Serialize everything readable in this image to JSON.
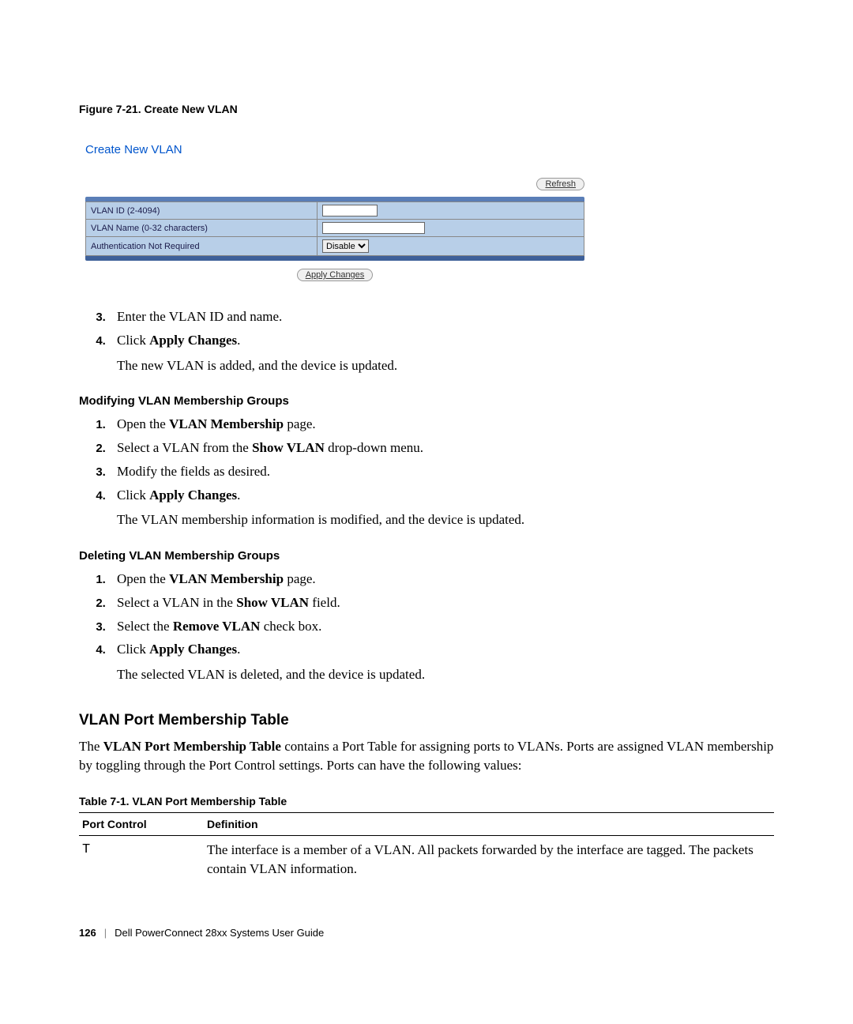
{
  "figure_caption": "Figure 7-21.   Create New VLAN",
  "screenshot": {
    "title": "Create New VLAN",
    "refresh_label": "Refresh",
    "rows": {
      "vlan_id_label": "VLAN ID (2-4094)",
      "vlan_name_label": "VLAN Name (0-32 characters)",
      "auth_label": "Authentication Not Required",
      "auth_value": "Disable"
    },
    "apply_label": "Apply Changes"
  },
  "steps_create": {
    "s3": "Enter the VLAN ID and name.",
    "s4_prefix": "Click ",
    "s4_bold": "Apply Changes",
    "s4_suffix": ".",
    "s4_note": "The new VLAN is added, and the device is updated."
  },
  "modify_heading": "Modifying VLAN Membership Groups",
  "steps_modify": {
    "s1_prefix": "Open the ",
    "s1_bold": "VLAN Membership",
    "s1_suffix": " page.",
    "s2_prefix": "Select a VLAN from the ",
    "s2_bold": "Show VLAN",
    "s2_suffix": " drop-down menu.",
    "s3": "Modify the fields as desired.",
    "s4_prefix": "Click ",
    "s4_bold": "Apply Changes",
    "s4_suffix": ".",
    "s4_note": "The VLAN membership information is modified, and the device is updated."
  },
  "delete_heading": "Deleting VLAN Membership Groups",
  "steps_delete": {
    "s1_prefix": "Open the ",
    "s1_bold": "VLAN Membership",
    "s1_suffix": " page.",
    "s2_prefix": "Select a VLAN in the ",
    "s2_bold": "Show VLAN",
    "s2_suffix": " field.",
    "s3_prefix": "Select the ",
    "s3_bold": "Remove VLAN",
    "s3_suffix": " check box.",
    "s4_prefix": "Click ",
    "s4_bold": "Apply Changes",
    "s4_suffix": ".",
    "s4_note": "The selected VLAN is deleted, and the device is updated."
  },
  "section_heading": "VLAN Port Membership Table",
  "section_body_prefix": "The ",
  "section_body_bold": "VLAN Port Membership Table",
  "section_body_suffix": " contains a Port Table for assigning ports to VLANs. Ports are assigned VLAN membership by toggling through the Port Control settings. Ports can have the following values:",
  "table_caption": "Table 7-1.   VLAN Port Membership Table",
  "table": {
    "col1": "Port Control",
    "col2": "Definition",
    "row1_c1": "T",
    "row1_c2": "The interface is a member of a VLAN. All packets forwarded by the interface are tagged. The packets contain VLAN information."
  },
  "footer": {
    "page_num": "126",
    "guide": "Dell PowerConnect 28xx Systems User Guide"
  }
}
